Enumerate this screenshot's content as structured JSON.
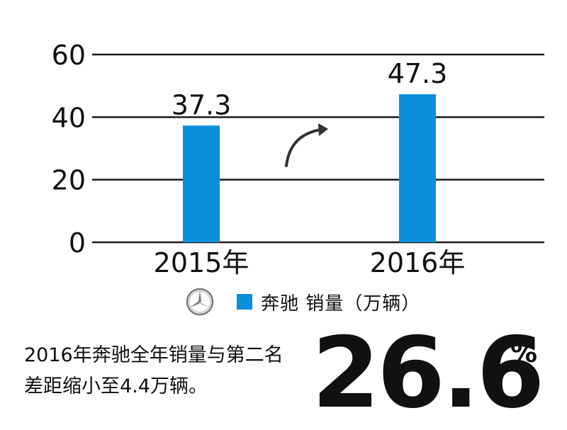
{
  "chart_data": {
    "type": "bar",
    "categories": [
      "2015年",
      "2016年"
    ],
    "values": [
      37.3,
      47.3
    ],
    "value_labels": [
      "37.3",
      "47.3"
    ],
    "yticks": [
      "0",
      "20",
      "40",
      "60"
    ],
    "ylim": [
      0,
      60
    ],
    "grid": true,
    "bar_color": "#0a8fdc",
    "legend_label": "奔驰 销量（万辆）",
    "legend_placement": "bottom"
  },
  "icons": {
    "legend_logo": "mercedes-star-icon",
    "trend": "curved-up-arrow-icon"
  },
  "caption": {
    "line1": "2016年奔驰全年销量与第二名",
    "line2": "差距缩小至4.4万辆。"
  },
  "stat": {
    "value": "26.6",
    "unit": "%"
  }
}
